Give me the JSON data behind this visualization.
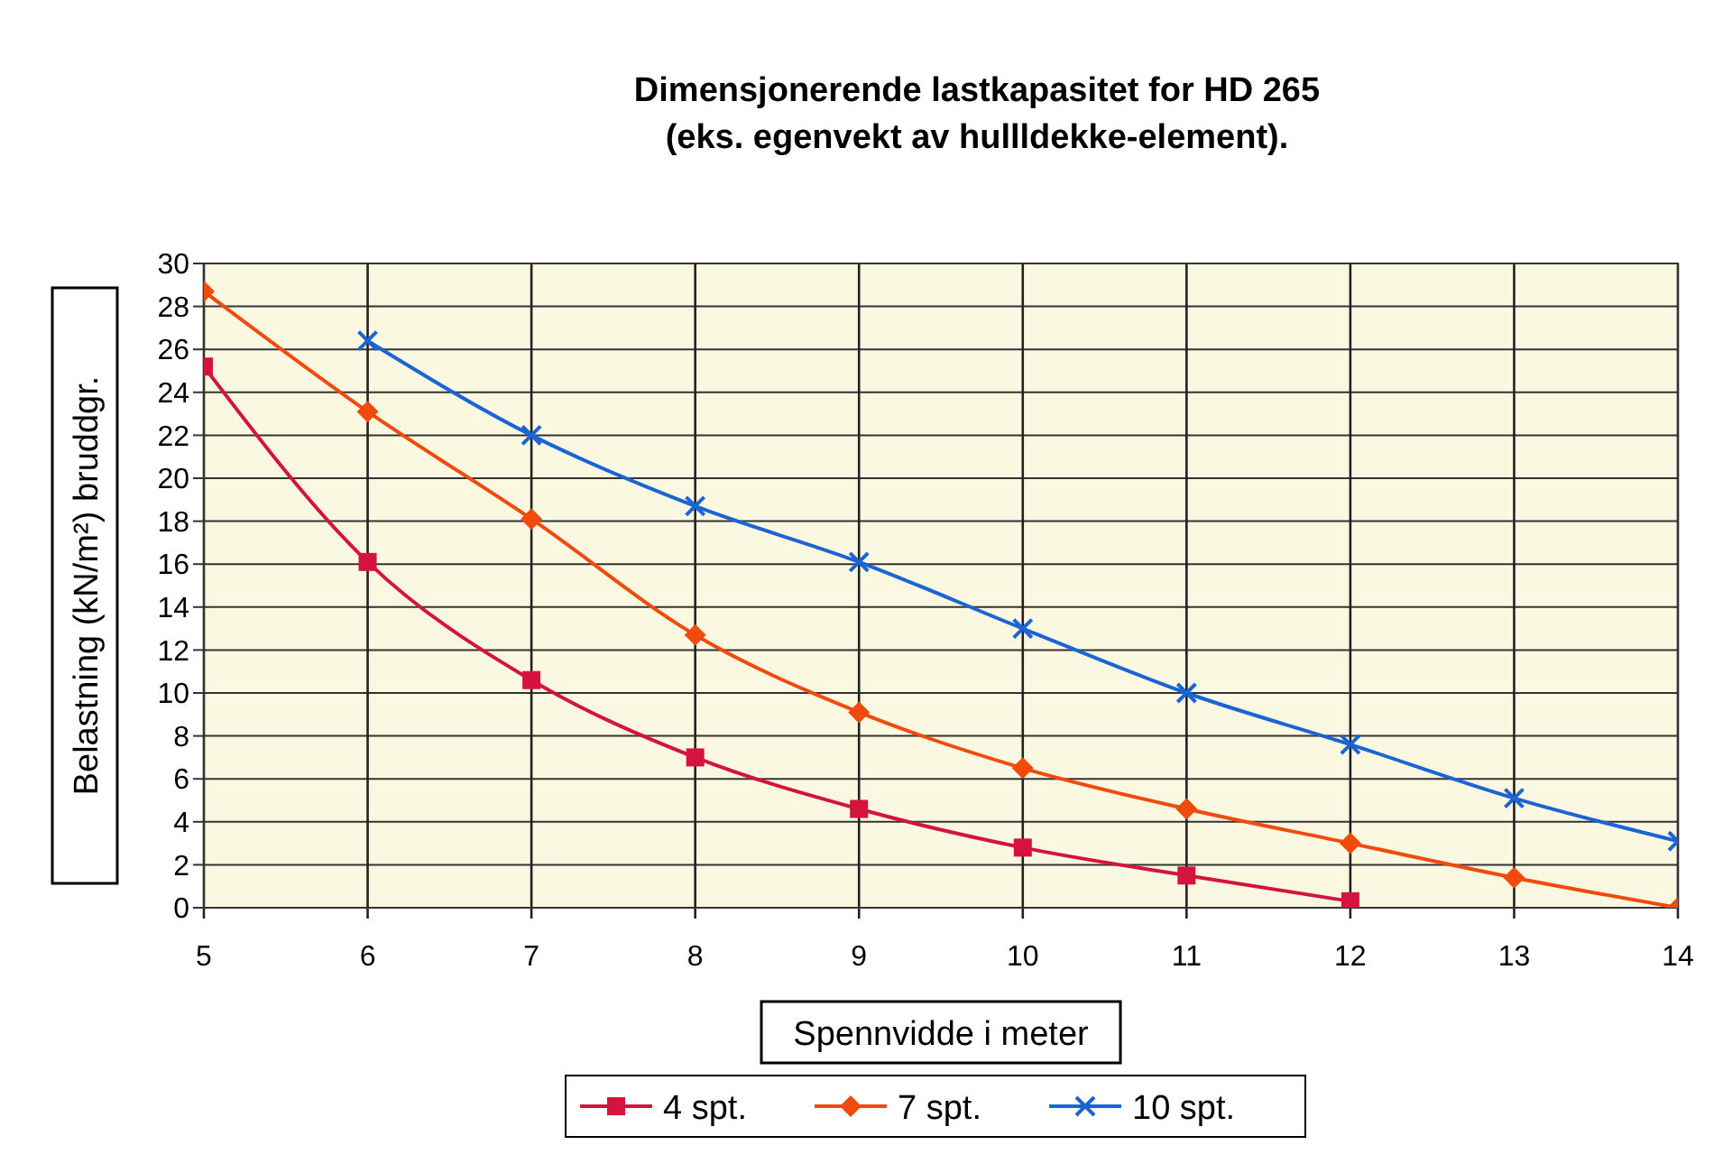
{
  "chart_data": {
    "type": "line",
    "title": "Dimensjonerende lastkapasitet for HD 265",
    "subtitle": "(eks. egenvekt av hullldekke-element).",
    "xlabel": "Spennvidde i meter",
    "ylabel": "Belastning (kN/m²) bruddgr.",
    "x": [
      5,
      6,
      7,
      8,
      9,
      10,
      11,
      12,
      13,
      14
    ],
    "series": [
      {
        "name": "4 spt.",
        "color": "#d4143c",
        "marker": "square",
        "values": [
          25.2,
          16.1,
          10.6,
          7.0,
          4.6,
          2.8,
          1.5,
          0.3,
          null,
          null
        ]
      },
      {
        "name": "7 spt.",
        "color": "#f04a0c",
        "marker": "diamond",
        "values": [
          28.7,
          23.1,
          18.1,
          12.7,
          9.1,
          6.5,
          4.6,
          3.0,
          1.4,
          0
        ]
      },
      {
        "name": "10 spt.",
        "color": "#1a64d4",
        "marker": "cross",
        "values": [
          null,
          26.4,
          22.0,
          18.7,
          16.1,
          13.0,
          10.0,
          7.6,
          5.1,
          3.1
        ]
      }
    ],
    "xlim": [
      5,
      14
    ],
    "xticks": [
      5,
      6,
      7,
      8,
      9,
      10,
      11,
      12,
      13,
      14
    ],
    "ylim": [
      0,
      30
    ],
    "yticks": [
      0,
      2,
      4,
      6,
      8,
      10,
      12,
      14,
      16,
      18,
      20,
      22,
      24,
      26,
      28,
      30
    ],
    "grid": true,
    "legend": "bottom",
    "line_style": "solid"
  }
}
